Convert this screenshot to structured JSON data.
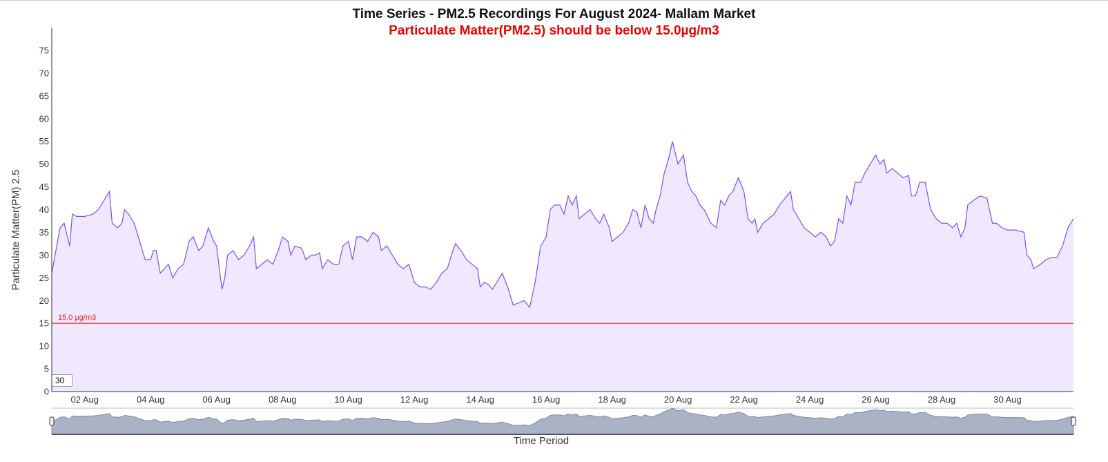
{
  "chart_data": {
    "type": "area",
    "title": "Time Series - PM2.5 Recordings For August 2024- Mallam Market",
    "subtitle": "Particulate Matter(PM2.5) should be below 15.0µg/m3",
    "xlabel": "Time Period",
    "ylabel": "Particulate Matter(PM) 2.5",
    "ylim": [
      0,
      80
    ],
    "yticks": [
      0,
      5,
      10,
      15,
      20,
      25,
      30,
      35,
      40,
      45,
      50,
      55,
      60,
      65,
      70,
      75
    ],
    "xlim": [
      "2024-08-01",
      "2024-09-01"
    ],
    "xticks": [
      {
        "date": "2024-08-02",
        "label": "02 Aug"
      },
      {
        "date": "2024-08-04",
        "label": "04 Aug"
      },
      {
        "date": "2024-08-06",
        "label": "06 Aug"
      },
      {
        "date": "2024-08-08",
        "label": "08 Aug"
      },
      {
        "date": "2024-08-10",
        "label": "10 Aug"
      },
      {
        "date": "2024-08-12",
        "label": "12 Aug"
      },
      {
        "date": "2024-08-14",
        "label": "14 Aug"
      },
      {
        "date": "2024-08-16",
        "label": "16 Aug"
      },
      {
        "date": "2024-08-18",
        "label": "18 Aug"
      },
      {
        "date": "2024-08-20",
        "label": "20 Aug"
      },
      {
        "date": "2024-08-22",
        "label": "22 Aug"
      },
      {
        "date": "2024-08-24",
        "label": "24 Aug"
      },
      {
        "date": "2024-08-26",
        "label": "26 Aug"
      },
      {
        "date": "2024-08-28",
        "label": "28 Aug"
      },
      {
        "date": "2024-08-30",
        "label": "30 Aug"
      }
    ],
    "threshold": {
      "value": 15.0,
      "label": "15.0 µg/m3"
    },
    "series": [
      {
        "color": "#7c4dff",
        "fill": "#efe8ff",
        "points": [
          [
            "2024-08-01T00:00",
            26
          ],
          [
            "2024-08-01T03:00",
            31
          ],
          [
            "2024-08-01T06:00",
            36
          ],
          [
            "2024-08-01T09:00",
            37
          ],
          [
            "2024-08-01T13:00",
            32
          ],
          [
            "2024-08-01T15:00",
            39
          ],
          [
            "2024-08-01T18:00",
            38.5
          ],
          [
            "2024-08-02T00:00",
            38.5
          ],
          [
            "2024-08-02T06:00",
            39
          ],
          [
            "2024-08-02T10:00",
            40
          ],
          [
            "2024-08-02T14:00",
            42
          ],
          [
            "2024-08-02T18:00",
            44
          ],
          [
            "2024-08-02T20:00",
            37
          ],
          [
            "2024-08-03T00:00",
            36
          ],
          [
            "2024-08-03T03:00",
            37
          ],
          [
            "2024-08-03T05:00",
            40
          ],
          [
            "2024-08-03T08:00",
            39
          ],
          [
            "2024-08-03T12:00",
            37
          ],
          [
            "2024-08-03T16:00",
            33
          ],
          [
            "2024-08-03T20:00",
            29
          ],
          [
            "2024-08-04T00:00",
            29
          ],
          [
            "2024-08-04T02:00",
            31
          ],
          [
            "2024-08-04T04:00",
            31
          ],
          [
            "2024-08-04T07:00",
            26
          ],
          [
            "2024-08-04T10:00",
            27
          ],
          [
            "2024-08-04T13:00",
            28
          ],
          [
            "2024-08-04T16:00",
            25
          ],
          [
            "2024-08-04T20:00",
            27
          ],
          [
            "2024-08-05T00:00",
            28
          ],
          [
            "2024-08-05T04:00",
            33
          ],
          [
            "2024-08-05T07:00",
            34
          ],
          [
            "2024-08-05T11:00",
            31
          ],
          [
            "2024-08-05T14:00",
            32
          ],
          [
            "2024-08-05T18:00",
            36
          ],
          [
            "2024-08-05T22:00",
            33
          ],
          [
            "2024-08-06T00:00",
            32
          ],
          [
            "2024-08-06T02:00",
            27
          ],
          [
            "2024-08-06T04:00",
            22.5
          ],
          [
            "2024-08-06T06:00",
            25
          ],
          [
            "2024-08-06T08:00",
            30
          ],
          [
            "2024-08-06T12:00",
            31
          ],
          [
            "2024-08-06T16:00",
            29
          ],
          [
            "2024-08-06T20:00",
            30
          ],
          [
            "2024-08-07T00:00",
            32
          ],
          [
            "2024-08-07T03:00",
            34
          ],
          [
            "2024-08-07T05:00",
            27
          ],
          [
            "2024-08-07T09:00",
            28
          ],
          [
            "2024-08-07T13:00",
            29
          ],
          [
            "2024-08-07T17:00",
            28
          ],
          [
            "2024-08-07T21:00",
            31
          ],
          [
            "2024-08-08T00:00",
            34
          ],
          [
            "2024-08-08T04:00",
            33
          ],
          [
            "2024-08-08T06:00",
            30
          ],
          [
            "2024-08-08T09:00",
            32
          ],
          [
            "2024-08-08T14:00",
            31.5
          ],
          [
            "2024-08-08T17:00",
            29
          ],
          [
            "2024-08-08T21:00",
            30
          ],
          [
            "2024-08-09T00:00",
            30
          ],
          [
            "2024-08-09T03:00",
            30.5
          ],
          [
            "2024-08-09T05:00",
            27
          ],
          [
            "2024-08-09T09:00",
            29
          ],
          [
            "2024-08-09T13:00",
            28
          ],
          [
            "2024-08-09T17:00",
            28
          ],
          [
            "2024-08-09T20:00",
            32
          ],
          [
            "2024-08-10T00:00",
            33
          ],
          [
            "2024-08-10T03:00",
            29
          ],
          [
            "2024-08-10T06:00",
            34
          ],
          [
            "2024-08-10T10:00",
            34
          ],
          [
            "2024-08-10T14:00",
            33
          ],
          [
            "2024-08-10T18:00",
            35
          ],
          [
            "2024-08-10T22:00",
            34
          ],
          [
            "2024-08-11T00:00",
            31
          ],
          [
            "2024-08-11T04:00",
            32
          ],
          [
            "2024-08-11T08:00",
            30
          ],
          [
            "2024-08-11T12:00",
            28
          ],
          [
            "2024-08-11T16:00",
            27
          ],
          [
            "2024-08-11T20:00",
            28
          ],
          [
            "2024-08-12T00:00",
            24
          ],
          [
            "2024-08-12T04:00",
            23
          ],
          [
            "2024-08-12T08:00",
            23
          ],
          [
            "2024-08-12T12:00",
            22.5
          ],
          [
            "2024-08-12T16:00",
            24
          ],
          [
            "2024-08-12T20:00",
            26
          ],
          [
            "2024-08-13T00:00",
            27
          ],
          [
            "2024-08-13T04:00",
            31
          ],
          [
            "2024-08-13T06:00",
            32.5
          ],
          [
            "2024-08-13T10:00",
            31
          ],
          [
            "2024-08-13T14:00",
            29
          ],
          [
            "2024-08-13T18:00",
            28
          ],
          [
            "2024-08-13T22:00",
            27
          ],
          [
            "2024-08-14T00:00",
            23
          ],
          [
            "2024-08-14T03:00",
            24
          ],
          [
            "2024-08-14T06:00",
            23.5
          ],
          [
            "2024-08-14T09:00",
            22.5
          ],
          [
            "2024-08-14T12:00",
            24
          ],
          [
            "2024-08-14T16:00",
            26
          ],
          [
            "2024-08-14T20:00",
            23
          ],
          [
            "2024-08-15T00:00",
            19
          ],
          [
            "2024-08-15T04:00",
            19.5
          ],
          [
            "2024-08-15T08:00",
            20
          ],
          [
            "2024-08-15T12:00",
            18.5
          ],
          [
            "2024-08-15T16:00",
            24
          ],
          [
            "2024-08-15T20:00",
            32
          ],
          [
            "2024-08-16T00:00",
            34
          ],
          [
            "2024-08-16T03:00",
            40
          ],
          [
            "2024-08-16T06:00",
            41
          ],
          [
            "2024-08-16T10:00",
            41
          ],
          [
            "2024-08-16T13:00",
            39
          ],
          [
            "2024-08-16T16:00",
            43
          ],
          [
            "2024-08-16T19:00",
            41
          ],
          [
            "2024-08-16T22:00",
            43
          ],
          [
            "2024-08-17T00:00",
            38
          ],
          [
            "2024-08-17T04:00",
            39
          ],
          [
            "2024-08-17T08:00",
            40
          ],
          [
            "2024-08-17T12:00",
            38
          ],
          [
            "2024-08-17T15:00",
            37
          ],
          [
            "2024-08-17T18:00",
            39
          ],
          [
            "2024-08-17T22:00",
            36
          ],
          [
            "2024-08-18T00:00",
            33
          ],
          [
            "2024-08-18T04:00",
            34
          ],
          [
            "2024-08-18T08:00",
            35
          ],
          [
            "2024-08-18T12:00",
            37
          ],
          [
            "2024-08-18T15:00",
            40
          ],
          [
            "2024-08-18T18:00",
            39.5
          ],
          [
            "2024-08-18T21:00",
            36
          ],
          [
            "2024-08-19T00:00",
            41
          ],
          [
            "2024-08-19T03:00",
            38
          ],
          [
            "2024-08-19T06:00",
            37
          ],
          [
            "2024-08-19T08:00",
            40
          ],
          [
            "2024-08-19T11:00",
            43
          ],
          [
            "2024-08-19T14:00",
            48
          ],
          [
            "2024-08-19T17:00",
            51
          ],
          [
            "2024-08-19T20:00",
            55
          ],
          [
            "2024-08-20T00:00",
            50
          ],
          [
            "2024-08-20T04:00",
            52
          ],
          [
            "2024-08-20T07:00",
            46
          ],
          [
            "2024-08-20T10:00",
            44
          ],
          [
            "2024-08-20T13:00",
            43
          ],
          [
            "2024-08-20T16:00",
            41
          ],
          [
            "2024-08-20T19:00",
            40
          ],
          [
            "2024-08-21T00:00",
            37
          ],
          [
            "2024-08-21T04:00",
            36
          ],
          [
            "2024-08-21T07:00",
            42
          ],
          [
            "2024-08-21T10:00",
            41
          ],
          [
            "2024-08-21T13:00",
            43
          ],
          [
            "2024-08-21T16:00",
            44
          ],
          [
            "2024-08-21T20:00",
            47
          ],
          [
            "2024-08-22T00:00",
            44
          ],
          [
            "2024-08-22T03:00",
            38
          ],
          [
            "2024-08-22T06:00",
            37
          ],
          [
            "2024-08-22T08:00",
            38
          ],
          [
            "2024-08-22T10:00",
            35
          ],
          [
            "2024-08-22T14:00",
            37
          ],
          [
            "2024-08-22T18:00",
            38
          ],
          [
            "2024-08-22T22:00",
            39
          ],
          [
            "2024-08-23T02:00",
            41
          ],
          [
            "2024-08-23T06:00",
            42.5
          ],
          [
            "2024-08-23T10:00",
            44
          ],
          [
            "2024-08-23T12:00",
            40
          ],
          [
            "2024-08-23T16:00",
            38
          ],
          [
            "2024-08-23T20:00",
            36
          ],
          [
            "2024-08-24T00:00",
            35
          ],
          [
            "2024-08-24T04:00",
            34
          ],
          [
            "2024-08-24T08:00",
            35
          ],
          [
            "2024-08-24T12:00",
            34
          ],
          [
            "2024-08-24T15:00",
            32
          ],
          [
            "2024-08-24T18:00",
            33
          ],
          [
            "2024-08-24T21:00",
            38
          ],
          [
            "2024-08-25T00:00",
            37
          ],
          [
            "2024-08-25T03:00",
            43
          ],
          [
            "2024-08-25T06:00",
            41
          ],
          [
            "2024-08-25T09:00",
            46
          ],
          [
            "2024-08-25T13:00",
            46
          ],
          [
            "2024-08-25T16:00",
            48
          ],
          [
            "2024-08-25T20:00",
            50
          ],
          [
            "2024-08-26T00:00",
            52
          ],
          [
            "2024-08-26T03:00",
            50
          ],
          [
            "2024-08-26T06:00",
            51
          ],
          [
            "2024-08-26T08:00",
            48
          ],
          [
            "2024-08-26T12:00",
            49
          ],
          [
            "2024-08-26T16:00",
            48
          ],
          [
            "2024-08-26T20:00",
            47
          ],
          [
            "2024-08-27T00:00",
            47.5
          ],
          [
            "2024-08-27T02:00",
            43
          ],
          [
            "2024-08-27T05:00",
            43
          ],
          [
            "2024-08-27T08:00",
            46
          ],
          [
            "2024-08-27T12:00",
            46
          ],
          [
            "2024-08-27T16:00",
            40
          ],
          [
            "2024-08-27T20:00",
            38
          ],
          [
            "2024-08-28T00:00",
            37
          ],
          [
            "2024-08-28T04:00",
            37
          ],
          [
            "2024-08-28T08:00",
            36
          ],
          [
            "2024-08-28T11:00",
            37
          ],
          [
            "2024-08-28T14:00",
            34
          ],
          [
            "2024-08-28T17:00",
            36
          ],
          [
            "2024-08-28T19:00",
            41
          ],
          [
            "2024-08-28T23:00",
            42
          ],
          [
            "2024-08-29T04:00",
            43
          ],
          [
            "2024-08-29T09:00",
            42.5
          ],
          [
            "2024-08-29T13:00",
            37
          ],
          [
            "2024-08-29T16:00",
            37
          ],
          [
            "2024-08-29T20:00",
            36
          ],
          [
            "2024-08-30T00:00",
            35.5
          ],
          [
            "2024-08-30T06:00",
            35.5
          ],
          [
            "2024-08-30T12:00",
            35
          ],
          [
            "2024-08-30T14:00",
            30
          ],
          [
            "2024-08-30T17:00",
            29
          ],
          [
            "2024-08-30T19:00",
            27
          ],
          [
            "2024-08-31T00:00",
            28
          ],
          [
            "2024-08-31T04:00",
            29
          ],
          [
            "2024-08-31T08:00",
            29.5
          ],
          [
            "2024-08-31T12:00",
            29.5
          ],
          [
            "2024-08-31T16:00",
            32
          ],
          [
            "2024-08-31T20:00",
            36
          ],
          [
            "2024-09-01T00:00",
            38
          ]
        ]
      }
    ],
    "range_selector": {
      "value": "30"
    }
  }
}
